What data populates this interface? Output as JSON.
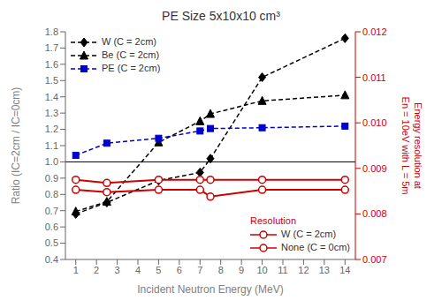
{
  "chart_data": {
    "type": "line",
    "title": "PE Size 5x10x10 cm³",
    "xlabel": "Incident Neutron Energy (MeV)",
    "ylabel": "Ratio (IC=2cm / IC=0cm)",
    "y2label": "Energy resolution at\nEn = 10eV with L = 5m",
    "x": [
      1,
      2.5,
      5,
      7,
      7.5,
      10,
      14
    ],
    "xlim": [
      0.5,
      14.5
    ],
    "xticks": [
      1,
      2,
      3,
      4,
      5,
      6,
      7,
      8,
      9,
      10,
      11,
      12,
      13,
      14
    ],
    "ylim": [
      0.4,
      1.8
    ],
    "yticks": [
      0.4,
      0.5,
      0.6,
      0.7,
      0.8,
      0.9,
      {
        "value": 1,
        "label": "1.0"
      },
      1.1,
      1.2,
      1.3,
      1.4,
      1.5,
      1.6,
      1.7,
      1.8
    ],
    "y2lim": [
      0.007,
      0.012
    ],
    "y2ticks": [
      0.007,
      0.008,
      0.009,
      {
        "value": 0.01,
        "label": "0.010"
      },
      0.011,
      0.012
    ],
    "grid": false,
    "series": [
      {
        "name": "W (C = 2cm)",
        "color": "#000000",
        "values": [
          0.68,
          0.75,
          0.885,
          0.935,
          1.02,
          1.52,
          1.76
        ],
        "marker": "diamond",
        "line_style": "dashed",
        "legend": "upper left"
      },
      {
        "name": "Be (C = 2cm)",
        "color": "#000000",
        "values": [
          0.695,
          0.755,
          1.12,
          1.25,
          1.295,
          1.375,
          1.41
        ],
        "marker": "triangle",
        "line_style": "dashed",
        "legend": "upper left"
      },
      {
        "name": "PE (C = 2cm)",
        "color": "#0000cc",
        "values": [
          1.04,
          1.115,
          1.145,
          1.19,
          1.205,
          1.21,
          1.22
        ],
        "marker": "square",
        "line_style": "dashed",
        "legend": "upper left"
      },
      {
        "name": "W (C = 2cm)",
        "color": "#cc0000",
        "values": [
          0.00875,
          0.00868,
          0.00875,
          0.00875,
          0.00875,
          0.00875,
          0.00875
        ],
        "marker": "circle",
        "line_style": "solid",
        "axis": "y2",
        "legend": "lower right"
      },
      {
        "name": "None (C = 0cm)",
        "color": "#cc0000",
        "values": [
          0.00853,
          0.00848,
          0.00853,
          0.00853,
          0.00838,
          0.00853,
          0.00853
        ],
        "marker": "circle",
        "line_style": "solid",
        "axis": "y2",
        "legend": "lower right"
      }
    ],
    "annotations": [
      {
        "text": "Resolution",
        "color": "#cc0000"
      }
    ],
    "reference_lines": [
      {
        "y": 1.0,
        "color": "#000000"
      }
    ]
  }
}
